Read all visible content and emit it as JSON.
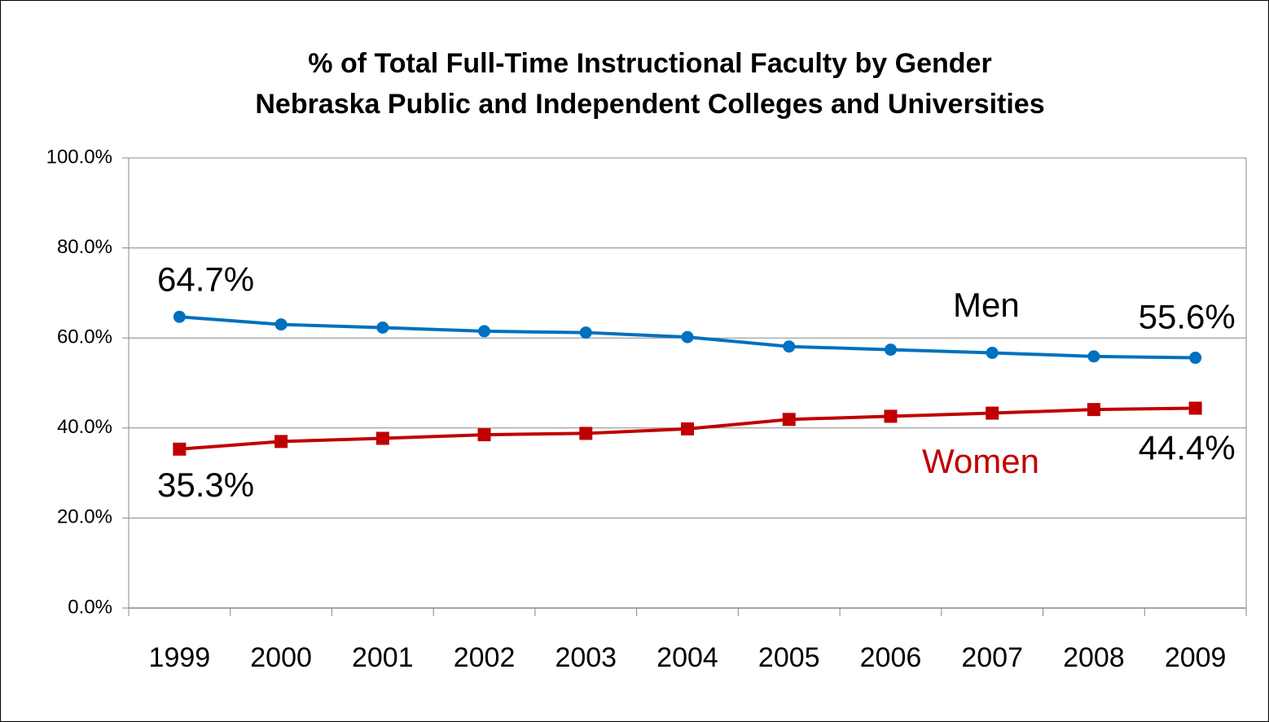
{
  "chart_data": {
    "type": "line",
    "title": "% of Total Full-Time Instructional Faculty by Gender",
    "subtitle": "Nebraska Public and Independent Colleges and Universities",
    "categories": [
      "1999",
      "2000",
      "2001",
      "2002",
      "2003",
      "2004",
      "2005",
      "2006",
      "2007",
      "2008",
      "2009"
    ],
    "series": [
      {
        "name": "Men",
        "color": "#0070c0",
        "marker": "circle",
        "values": [
          64.7,
          63.0,
          62.3,
          61.5,
          61.2,
          60.2,
          58.1,
          57.4,
          56.7,
          55.9,
          55.6
        ],
        "value_labels": [
          "64.7%",
          null,
          null,
          null,
          null,
          null,
          null,
          null,
          null,
          null,
          "55.6%"
        ]
      },
      {
        "name": "Women",
        "color": "#c00000",
        "marker": "square",
        "values": [
          35.3,
          37.0,
          37.7,
          38.5,
          38.8,
          39.8,
          41.9,
          42.6,
          43.3,
          44.1,
          44.4
        ],
        "value_labels": [
          "35.3%",
          null,
          null,
          null,
          null,
          null,
          null,
          null,
          null,
          null,
          "44.4%"
        ]
      }
    ],
    "ylim": [
      0,
      100
    ],
    "yticks": [
      {
        "value": 0,
        "label": "0.0%"
      },
      {
        "value": 20,
        "label": "20.0%"
      },
      {
        "value": 40,
        "label": "40.0%"
      },
      {
        "value": 60,
        "label": "60.0%"
      },
      {
        "value": 80,
        "label": "80.0%"
      },
      {
        "value": 100,
        "label": "100.0%"
      }
    ],
    "grid": true
  }
}
